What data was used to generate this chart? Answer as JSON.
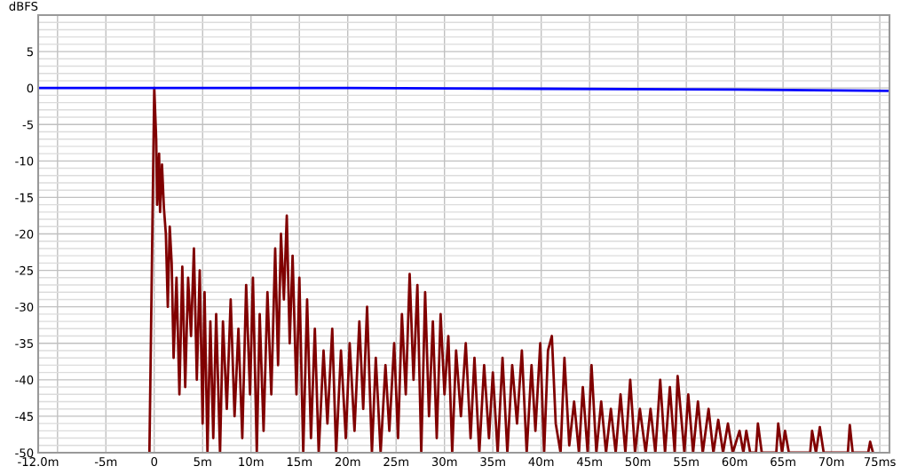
{
  "chart_data": {
    "type": "line",
    "ylabel": "dBFS",
    "xlim": [
      -12,
      76
    ],
    "ylim": [
      -50,
      10
    ],
    "xticks": [
      {
        "value": -12,
        "label": "-12.0m"
      },
      {
        "value": -10,
        "label": null
      },
      {
        "value": -5,
        "label": "-5m"
      },
      0,
      {
        "value": 5,
        "label": "5m"
      },
      {
        "value": 10,
        "label": "10m"
      },
      {
        "value": 15,
        "label": "15m"
      },
      {
        "value": 20,
        "label": "20m"
      },
      {
        "value": 25,
        "label": "25m"
      },
      {
        "value": 30,
        "label": "30m"
      },
      {
        "value": 35,
        "label": "35m"
      },
      {
        "value": 40,
        "label": "40m"
      },
      {
        "value": 45,
        "label": "45m"
      },
      {
        "value": 50,
        "label": "50m"
      },
      {
        "value": 55,
        "label": "55m"
      },
      {
        "value": 60,
        "label": "60m"
      },
      {
        "value": 65,
        "label": "65m"
      },
      {
        "value": 70,
        "label": "70m"
      },
      {
        "value": 75,
        "label": "75ms"
      }
    ],
    "yticks": [
      -50,
      {
        "value": -49,
        "label": null
      },
      {
        "value": -48,
        "label": null
      },
      {
        "value": -47,
        "label": null
      },
      {
        "value": -46,
        "label": null
      },
      -45,
      {
        "value": -44,
        "label": null
      },
      {
        "value": -43,
        "label": null
      },
      {
        "value": -42,
        "label": null
      },
      {
        "value": -41,
        "label": null
      },
      -40,
      {
        "value": -39,
        "label": null
      },
      {
        "value": -38,
        "label": null
      },
      {
        "value": -37,
        "label": null
      },
      {
        "value": -36,
        "label": null
      },
      -35,
      {
        "value": -34,
        "label": null
      },
      {
        "value": -33,
        "label": null
      },
      {
        "value": -32,
        "label": null
      },
      {
        "value": -31,
        "label": null
      },
      -30,
      {
        "value": -29,
        "label": null
      },
      {
        "value": -28,
        "label": null
      },
      {
        "value": -27,
        "label": null
      },
      {
        "value": -26,
        "label": null
      },
      -25,
      {
        "value": -24,
        "label": null
      },
      {
        "value": -23,
        "label": null
      },
      {
        "value": -22,
        "label": null
      },
      {
        "value": -21,
        "label": null
      },
      -20,
      {
        "value": -19,
        "label": null
      },
      {
        "value": -18,
        "label": null
      },
      {
        "value": -17,
        "label": null
      },
      {
        "value": -16,
        "label": null
      },
      -15,
      {
        "value": -14,
        "label": null
      },
      {
        "value": -13,
        "label": null
      },
      {
        "value": -12,
        "label": null
      },
      {
        "value": -11,
        "label": null
      },
      -10,
      {
        "value": -9,
        "label": null
      },
      {
        "value": -8,
        "label": null
      },
      {
        "value": -7,
        "label": null
      },
      {
        "value": -6,
        "label": null
      },
      -5,
      {
        "value": -4,
        "label": null
      },
      {
        "value": -3,
        "label": null
      },
      {
        "value": -2,
        "label": null
      },
      {
        "value": -1,
        "label": null
      },
      0,
      {
        "value": 1,
        "label": null
      },
      {
        "value": 2,
        "label": null
      },
      {
        "value": 3,
        "label": null
      },
      {
        "value": 4,
        "label": null
      },
      5,
      {
        "value": 6,
        "label": null
      },
      {
        "value": 7,
        "label": null
      },
      {
        "value": 8,
        "label": null
      },
      {
        "value": 9,
        "label": null
      },
      {
        "value": 10,
        "label": null
      }
    ],
    "grid": true,
    "legend": false,
    "marker": "none",
    "line_style": "solid",
    "series": [
      {
        "color": "#800000",
        "x": [
          -0.5,
          0,
          0.2,
          0.3,
          0.5,
          0.6,
          0.8,
          1.0,
          1.2,
          1.4,
          1.6,
          1.8,
          2.0,
          2.3,
          2.6,
          2.9,
          3.2,
          3.5,
          3.8,
          4.1,
          4.4,
          4.7,
          5.0,
          5.2,
          5.5,
          5.8,
          6.1,
          6.4,
          6.8,
          7.1,
          7.5,
          7.9,
          8.3,
          8.7,
          9.1,
          9.5,
          9.9,
          10.2,
          10.6,
          10.9,
          11.3,
          11.7,
          12.1,
          12.5,
          12.8,
          13.1,
          13.4,
          13.7,
          14.0,
          14.3,
          14.7,
          15.0,
          15.4,
          15.8,
          16.2,
          16.6,
          17.0,
          17.5,
          17.9,
          18.4,
          18.8,
          19.3,
          19.8,
          20.2,
          20.7,
          21.2,
          21.6,
          22.0,
          22.5,
          22.9,
          23.4,
          23.9,
          24.3,
          24.8,
          25.2,
          25.6,
          26.0,
          26.4,
          26.8,
          27.2,
          27.6,
          28.0,
          28.4,
          28.8,
          29.2,
          29.6,
          30.0,
          30.4,
          30.8,
          31.2,
          31.7,
          32.2,
          32.7,
          33.1,
          33.6,
          34.1,
          34.6,
          35.0,
          35.5,
          36.0,
          36.5,
          37.0,
          37.5,
          38.0,
          38.5,
          39.0,
          39.4,
          39.9,
          40.3,
          40.7,
          41.1,
          41.5,
          42.0,
          42.4,
          42.9,
          43.4,
          43.9,
          44.3,
          44.8,
          45.2,
          45.7,
          46.2,
          46.7,
          47.2,
          47.7,
          48.2,
          48.7,
          49.2,
          49.7,
          50.2,
          50.8,
          51.3,
          51.8,
          52.3,
          52.8,
          53.3,
          53.8,
          54.1,
          54.8,
          55.2,
          55.7,
          56.2,
          56.7,
          57.3,
          57.8,
          58.3,
          58.8,
          59.3,
          59.8,
          60.5,
          60.9,
          61.2,
          61.6,
          62.2,
          62.4,
          62.8,
          64.3,
          64.5,
          64.9,
          65.2,
          65.6,
          67.8,
          68.0,
          68.4,
          68.8,
          69.2,
          71.7,
          71.9,
          72.2,
          73.8,
          74.0,
          74.3
        ],
        "values": [
          -50,
          0,
          -7,
          -16,
          -9,
          -17,
          -10.5,
          -16.5,
          -20,
          -30,
          -19,
          -24,
          -37,
          -26,
          -42,
          -24.5,
          -41,
          -26,
          -34,
          -22,
          -40,
          -25,
          -46,
          -28,
          -50,
          -32,
          -48,
          -31,
          -50,
          -32,
          -44,
          -29,
          -45,
          -33,
          -48,
          -27,
          -42,
          -26,
          -50,
          -31,
          -47,
          -28,
          -42,
          -22,
          -38,
          -20,
          -29,
          -17.5,
          -35,
          -23,
          -42,
          -26,
          -50,
          -29,
          -48,
          -33,
          -50,
          -36,
          -46,
          -33,
          -50,
          -36,
          -48,
          -35,
          -47,
          -32,
          -44,
          -30,
          -50,
          -37,
          -50,
          -38,
          -47,
          -35,
          -48,
          -31,
          -42,
          -25.5,
          -40,
          -27,
          -50,
          -28,
          -45,
          -32,
          -48,
          -31,
          -42,
          -34,
          -50,
          -36,
          -45,
          -35,
          -48,
          -37,
          -50,
          -38,
          -48,
          -39,
          -50,
          -37,
          -50,
          -38,
          -46,
          -36,
          -50,
          -38,
          -47,
          -35,
          -50,
          -36,
          -34,
          -46,
          -50,
          -37,
          -49,
          -43,
          -50,
          -41,
          -50,
          -38,
          -50,
          -43,
          -50,
          -44,
          -50,
          -42,
          -50,
          -40,
          -50,
          -44,
          -50,
          -44,
          -50,
          -40,
          -50,
          -41,
          -50,
          -39.5,
          -50,
          -42,
          -50,
          -43,
          -50,
          -44,
          -50,
          -45.5,
          -50,
          -46,
          -50,
          -47,
          -50,
          -47,
          -50,
          -50,
          -46,
          -50,
          -50,
          -46,
          -50,
          -47,
          -50,
          -50,
          -47,
          -50,
          -46.5,
          -50,
          -50,
          -46.2,
          -50,
          -50,
          -48.5,
          -50
        ]
      },
      {
        "color": "#0000ff",
        "x": [
          -12,
          0,
          20,
          40,
          60,
          76
        ],
        "values": [
          0,
          0,
          0,
          -0.1,
          -0.2,
          -0.4
        ]
      }
    ]
  }
}
